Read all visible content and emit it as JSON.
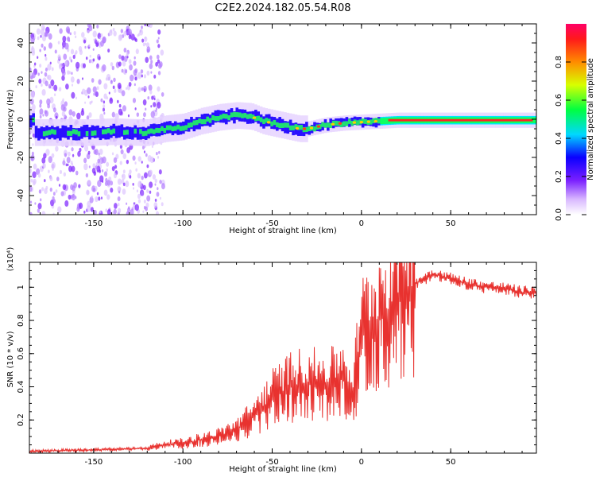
{
  "title": "C2E2.2024.182.05.54.R08",
  "chart_data": [
    {
      "type": "heatmap",
      "xlabel": "Height of straight line (km)",
      "ylabel": "Frequency (Hz)",
      "xlim": [
        -186,
        98
      ],
      "ylim": [
        -50,
        50
      ],
      "xticks": [
        -150,
        -100,
        -50,
        0,
        50
      ],
      "yticks": [
        -40,
        -20,
        0,
        20,
        40
      ],
      "colorbar": {
        "label": "Normalized spectral amplitude",
        "range": [
          0.0,
          1.0
        ],
        "ticks": [
          0.0,
          0.2,
          0.4,
          0.6,
          0.8
        ],
        "colormap": "rainbow (white-purple-blue-cyan-green-yellow-orange-red-magenta)"
      },
      "ridge": {
        "x": [
          -183,
          -165,
          -150,
          -140,
          -125,
          -120,
          -110,
          -100,
          -90,
          -80,
          -70,
          -62,
          -55,
          -50,
          -45,
          -40,
          -35,
          -30,
          -20,
          -10,
          0,
          10,
          20,
          40,
          60,
          80,
          96
        ],
        "frequency": [
          -7,
          -7,
          -7,
          -6.5,
          -7,
          -7,
          -5,
          -4,
          -1,
          1,
          2,
          1.5,
          -1,
          -2,
          -3,
          -4,
          -5,
          -5,
          -3,
          -2,
          -1.5,
          -1,
          -0.5,
          -0.5,
          -0.5,
          -0.5,
          -0.5
        ]
      },
      "grid": false
    },
    {
      "type": "line",
      "xlabel": "Height of straight line (km)",
      "ylabel": "SNR (10 * v/v)",
      "y_multiplier": "(x10⁴)",
      "xlim": [
        -186,
        98
      ],
      "ylim": [
        0,
        1.15
      ],
      "xticks": [
        -150,
        -100,
        -50,
        0,
        50
      ],
      "yticks": [
        0.2,
        0.4,
        0.6,
        0.8,
        1.0
      ],
      "color": "#e8322f",
      "series": [
        {
          "x": [
            -186,
            -170,
            -150,
            -130,
            -120,
            -110,
            -100,
            -90,
            -80,
            -70,
            -60,
            -50,
            -40,
            -30,
            -20,
            -10,
            -5,
            0,
            5,
            10,
            15,
            20,
            30,
            40,
            50,
            60,
            70,
            80,
            90,
            98
          ],
          "y": [
            0.01,
            0.015,
            0.02,
            0.025,
            0.03,
            0.05,
            0.06,
            0.08,
            0.1,
            0.14,
            0.22,
            0.33,
            0.4,
            0.42,
            0.4,
            0.45,
            0.35,
            0.7,
            0.75,
            0.8,
            0.85,
            0.92,
            1.02,
            1.08,
            1.05,
            1.02,
            1.0,
            0.99,
            0.97,
            0.97
          ]
        }
      ],
      "grid": false
    }
  ]
}
